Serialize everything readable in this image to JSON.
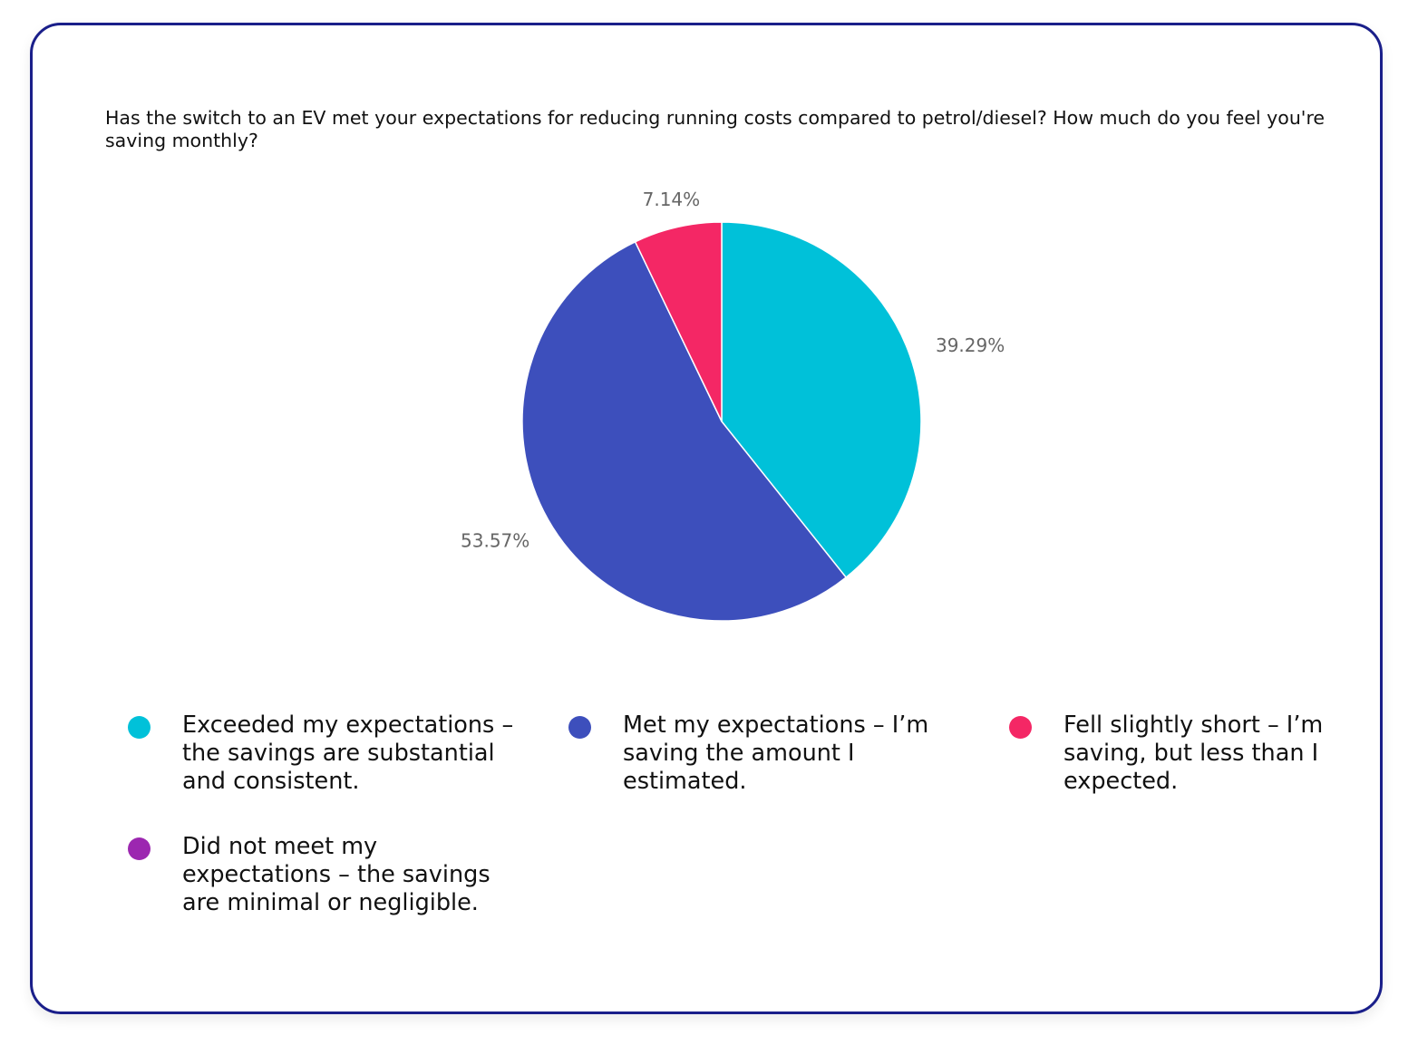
{
  "chart_data": {
    "type": "pie",
    "title": "Has the switch to an EV met your expectations for reducing running costs compared to petrol/diesel? How much do you feel you're saving monthly?",
    "slices": [
      {
        "label": "Exceeded my expectations – the savings are substantial and consistent.",
        "value": 39.29,
        "value_label": "39.29%",
        "color": "#00C1D9"
      },
      {
        "label": "Met my expectations – I’m saving the amount I estimated.",
        "value": 53.57,
        "value_label": "53.57%",
        "color": "#3D4FBC"
      },
      {
        "label": "Fell slightly short – I’m saving, but less than I expected.",
        "value": 7.14,
        "value_label": "7.14%",
        "color": "#F42765"
      },
      {
        "label": "Did not meet my expectations – the savings are minimal or negligible.",
        "value": 0,
        "value_label": "",
        "color": "#9C27B0"
      }
    ],
    "legend_position": "bottom"
  }
}
